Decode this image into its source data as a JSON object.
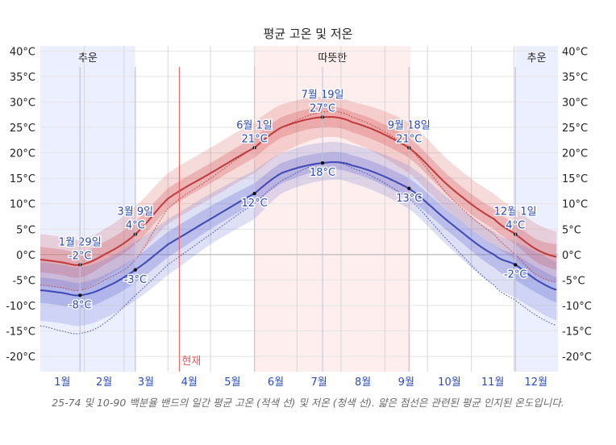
{
  "chart_data": {
    "type": "line",
    "title": "평균 고온 및 저온",
    "y_unit": "°C",
    "ylim": [
      -23,
      41
    ],
    "y_ticks": [
      -20,
      -15,
      -10,
      -5,
      0,
      5,
      10,
      15,
      20,
      25,
      30,
      35,
      40
    ],
    "x_domain": [
      0,
      365
    ],
    "months": [
      {
        "label": "1월",
        "start": 0
      },
      {
        "label": "2월",
        "start": 31
      },
      {
        "label": "3월",
        "start": 59
      },
      {
        "label": "4월",
        "start": 90
      },
      {
        "label": "5월",
        "start": 120
      },
      {
        "label": "6월",
        "start": 151
      },
      {
        "label": "7월",
        "start": 181
      },
      {
        "label": "8월",
        "start": 212
      },
      {
        "label": "9월",
        "start": 243
      },
      {
        "label": "10월",
        "start": 273
      },
      {
        "label": "11월",
        "start": 304
      },
      {
        "label": "12월",
        "start": 334
      }
    ],
    "season_bands": [
      {
        "label": "추운",
        "kind": "cold",
        "start": 0,
        "end": 67
      },
      {
        "label": "따뜻한",
        "kind": "warm",
        "start": 151,
        "end": 261
      },
      {
        "label": "추운",
        "kind": "cold",
        "start": 335,
        "end": 365
      }
    ],
    "current_marker": {
      "label": "현재",
      "day": 98
    },
    "zero_line": 0,
    "series": [
      {
        "name": "평균 고온",
        "color": "#c0393b",
        "days": [
          0,
          15,
          28,
          45,
          67,
          90,
          120,
          151,
          170,
          199,
          220,
          260,
          290,
          320,
          335,
          350,
          365
        ],
        "mean": [
          -1,
          -1.5,
          -2,
          0,
          4,
          11,
          16,
          21,
          25,
          27,
          26,
          21,
          13,
          7,
          4,
          1,
          -0.5
        ],
        "p25": [
          -3.5,
          -4,
          -4.5,
          -2,
          2,
          9,
          14,
          19,
          23,
          25,
          24,
          19,
          11,
          5,
          2,
          -1.5,
          -3
        ],
        "p75": [
          1.5,
          1,
          0.5,
          2.5,
          6.5,
          13,
          18,
          23,
          27,
          29,
          28,
          23,
          15,
          9,
          6,
          3,
          2
        ],
        "p10": [
          -6,
          -6.5,
          -7,
          -4.5,
          -0.5,
          6,
          11,
          16,
          20,
          23,
          22,
          16,
          8,
          2,
          -1,
          -4,
          -5.5
        ],
        "p90": [
          4,
          3.5,
          3,
          5,
          9.5,
          16,
          21,
          26,
          29.5,
          31,
          30,
          26,
          18,
          12,
          9,
          6,
          4.5
        ],
        "apparent": [
          -6,
          -6.5,
          -7,
          -5,
          -1,
          9,
          15,
          21,
          25,
          28,
          27,
          21,
          11,
          4,
          0,
          -4,
          -5.5
        ]
      },
      {
        "name": "평균 저온",
        "color": "#3f48b4",
        "days": [
          0,
          15,
          28,
          45,
          67,
          90,
          120,
          151,
          170,
          199,
          220,
          260,
          290,
          320,
          335,
          350,
          365
        ],
        "mean": [
          -7,
          -7.5,
          -8,
          -6.5,
          -3,
          2,
          7,
          12,
          16,
          18,
          17.5,
          13,
          6,
          0,
          -2,
          -5,
          -7
        ],
        "p25": [
          -9.5,
          -10,
          -10.5,
          -9,
          -5.5,
          -0.5,
          5,
          10,
          14,
          16.5,
          16,
          11,
          4,
          -2.5,
          -5,
          -7.5,
          -9.5
        ],
        "p75": [
          -4.5,
          -5,
          -5.5,
          -4,
          -0.5,
          4.5,
          9.5,
          14,
          18,
          20,
          19.5,
          15,
          8,
          2,
          0,
          -2.5,
          -4.5
        ],
        "p10": [
          -13,
          -13.5,
          -14,
          -12.5,
          -9,
          -4,
          2,
          7,
          12,
          14.5,
          14,
          9,
          1,
          -6,
          -8.5,
          -11,
          -13
        ],
        "p90": [
          -1.5,
          -2,
          -2.5,
          -1,
          2.5,
          7,
          12,
          16.5,
          20,
          22,
          21.5,
          17.5,
          10.5,
          4.5,
          2.5,
          0.5,
          -1.5
        ],
        "apparent": [
          -14,
          -15,
          -15.5,
          -13.5,
          -8,
          -2,
          4,
          10,
          14.5,
          18,
          17,
          11,
          2,
          -6,
          -9,
          -12,
          -14
        ]
      }
    ],
    "annotations": [
      {
        "date": "1월 29일",
        "value": "-2°C",
        "day": 28,
        "y": -2,
        "series": "high",
        "pos": "above"
      },
      {
        "date": "",
        "value": "-8°C",
        "day": 28,
        "y": -8,
        "series": "low",
        "pos": "below"
      },
      {
        "date": "3월 9일",
        "value": "4°C",
        "day": 67,
        "y": 4,
        "series": "high",
        "pos": "above"
      },
      {
        "date": "",
        "value": "-3°C",
        "day": 67,
        "y": -3,
        "series": "low",
        "pos": "below"
      },
      {
        "date": "6월 1일",
        "value": "21°C",
        "day": 151,
        "y": 21,
        "series": "high",
        "pos": "above"
      },
      {
        "date": "",
        "value": "12°C",
        "day": 151,
        "y": 12,
        "series": "low",
        "pos": "below"
      },
      {
        "date": "7월 19일",
        "value": "27°C",
        "day": 199,
        "y": 27,
        "series": "high",
        "pos": "above"
      },
      {
        "date": "",
        "value": "18°C",
        "day": 199,
        "y": 18,
        "series": "low",
        "pos": "below"
      },
      {
        "date": "9월 18일",
        "value": "21°C",
        "day": 260,
        "y": 21,
        "series": "high",
        "pos": "above"
      },
      {
        "date": "",
        "value": "13°C",
        "day": 260,
        "y": 13,
        "series": "low",
        "pos": "below"
      },
      {
        "date": "12월 1일",
        "value": "4°C",
        "day": 335,
        "y": 4,
        "series": "high",
        "pos": "above"
      },
      {
        "date": "",
        "value": "-2°C",
        "day": 335,
        "y": -2,
        "series": "low",
        "pos": "below"
      }
    ],
    "caption": "25-74 및 10-90 백분율 밴드의 일간 평균 고온 (적색 선) 및 저온 (청색 선). 얇은 점선은 관련된 평균 인지된 온도입니다."
  }
}
